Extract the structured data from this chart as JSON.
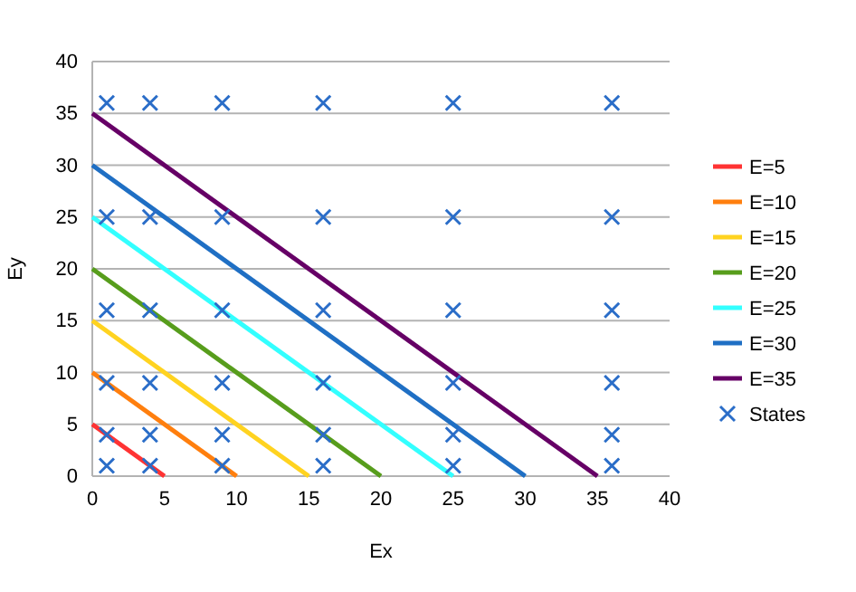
{
  "chart_data": {
    "type": "line",
    "xlabel": "Ex",
    "ylabel": "Ey",
    "xlim": [
      0,
      40
    ],
    "ylim": [
      0,
      40
    ],
    "xticks": [
      0,
      5,
      10,
      15,
      20,
      25,
      30,
      35,
      40
    ],
    "yticks": [
      0,
      5,
      10,
      15,
      20,
      25,
      30,
      35,
      40
    ],
    "grid": "y",
    "legend": "right",
    "series": [
      {
        "name": "E=5",
        "color": "#ff3333",
        "x": [
          0,
          5
        ],
        "values": [
          5,
          0
        ]
      },
      {
        "name": "E=10",
        "color": "#ff7f0e",
        "x": [
          0,
          10
        ],
        "values": [
          10,
          0
        ]
      },
      {
        "name": "E=15",
        "color": "#ffd320",
        "x": [
          0,
          15
        ],
        "values": [
          15,
          0
        ]
      },
      {
        "name": "E=20",
        "color": "#579d1c",
        "x": [
          0,
          20
        ],
        "values": [
          20,
          0
        ]
      },
      {
        "name": "E=25",
        "color": "#33ffff",
        "x": [
          0,
          25
        ],
        "values": [
          25,
          0
        ]
      },
      {
        "name": "E=30",
        "color": "#1f6fc4",
        "x": [
          0,
          30
        ],
        "values": [
          30,
          0
        ]
      },
      {
        "name": "E=35",
        "color": "#660066",
        "x": [
          0,
          35
        ],
        "values": [
          35,
          0
        ]
      },
      {
        "name": "States",
        "type": "scatter",
        "marker": "cross",
        "color": "#2a6dc8",
        "x": [
          1,
          1,
          1,
          1,
          1,
          1,
          4,
          4,
          4,
          4,
          4,
          4,
          9,
          9,
          9,
          9,
          9,
          9,
          16,
          16,
          16,
          16,
          16,
          16,
          25,
          25,
          25,
          25,
          25,
          25,
          36,
          36,
          36,
          36,
          36,
          36
        ],
        "values": [
          1,
          4,
          9,
          16,
          25,
          36,
          1,
          4,
          9,
          16,
          25,
          36,
          1,
          4,
          9,
          16,
          25,
          36,
          1,
          4,
          9,
          16,
          25,
          36,
          1,
          4,
          9,
          16,
          25,
          36,
          1,
          4,
          9,
          16,
          25,
          36
        ]
      }
    ]
  }
}
